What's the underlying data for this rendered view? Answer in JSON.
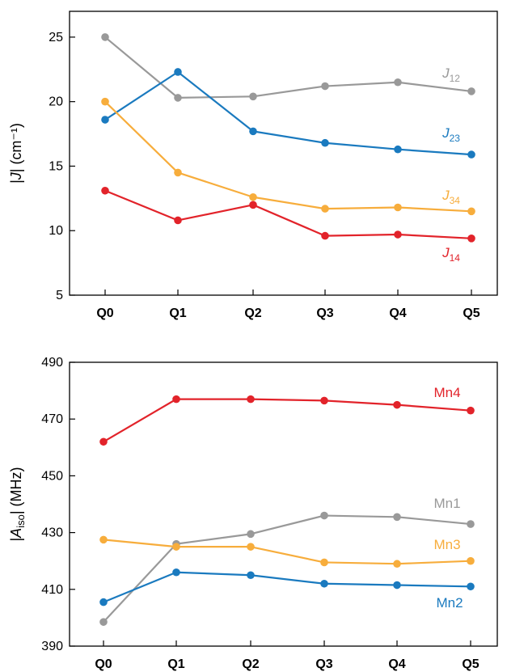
{
  "colors": {
    "gray": "#999999",
    "blue": "#1a7abf",
    "orange": "#f7ad3c",
    "red": "#e2232a"
  },
  "chart_data": [
    {
      "type": "line",
      "categories": [
        "Q0",
        "Q1",
        "Q2",
        "Q3",
        "Q4",
        "Q5"
      ],
      "ylabel": {
        "pre": "|",
        "italic": "J",
        "post": "| (cm⁻¹)"
      },
      "ylim": [
        5,
        27
      ],
      "yticks": [
        "5",
        "10",
        "15",
        "20",
        "25"
      ],
      "series": [
        {
          "name": "J12",
          "label_main": "J",
          "label_sub": "12",
          "color": "#999999",
          "values": [
            25.0,
            20.3,
            20.4,
            21.2,
            21.5,
            20.8
          ]
        },
        {
          "name": "J23",
          "label_main": "J",
          "label_sub": "23",
          "color": "#1a7abf",
          "values": [
            18.6,
            22.3,
            17.7,
            16.8,
            16.3,
            15.9
          ]
        },
        {
          "name": "J34",
          "label_main": "J",
          "label_sub": "34",
          "color": "#f7ad3c",
          "values": [
            20.0,
            14.5,
            12.6,
            11.7,
            11.8,
            11.5
          ]
        },
        {
          "name": "J14",
          "label_main": "J",
          "label_sub": "14",
          "color": "#e2232a",
          "values": [
            13.1,
            10.8,
            12.0,
            9.6,
            9.7,
            9.4
          ]
        }
      ]
    },
    {
      "type": "line",
      "categories": [
        "Q0",
        "Q1",
        "Q2",
        "Q3",
        "Q4",
        "Q5"
      ],
      "ylabel": {
        "pre": "|",
        "italic": "A",
        "sub": "iso",
        "post": "| (MHz)"
      },
      "ylim": [
        390,
        490
      ],
      "yticks": [
        "390",
        "410",
        "430",
        "450",
        "470",
        "490"
      ],
      "series": [
        {
          "name": "Mn4",
          "label_main": "Mn4",
          "label_sub": "",
          "color": "#e2232a",
          "values": [
            462,
            477,
            477,
            476.5,
            475,
            473
          ]
        },
        {
          "name": "Mn1",
          "label_main": "Mn1",
          "label_sub": "",
          "color": "#999999",
          "values": [
            398.5,
            426,
            429.5,
            436,
            435.5,
            433
          ]
        },
        {
          "name": "Mn3",
          "label_main": "Mn3",
          "label_sub": "",
          "color": "#f7ad3c",
          "values": [
            427.5,
            425,
            425,
            419.5,
            419,
            420
          ]
        },
        {
          "name": "Mn2",
          "label_main": "Mn2",
          "label_sub": "",
          "color": "#1a7abf",
          "values": [
            405.5,
            416,
            415,
            412,
            411.5,
            411
          ]
        }
      ]
    }
  ]
}
